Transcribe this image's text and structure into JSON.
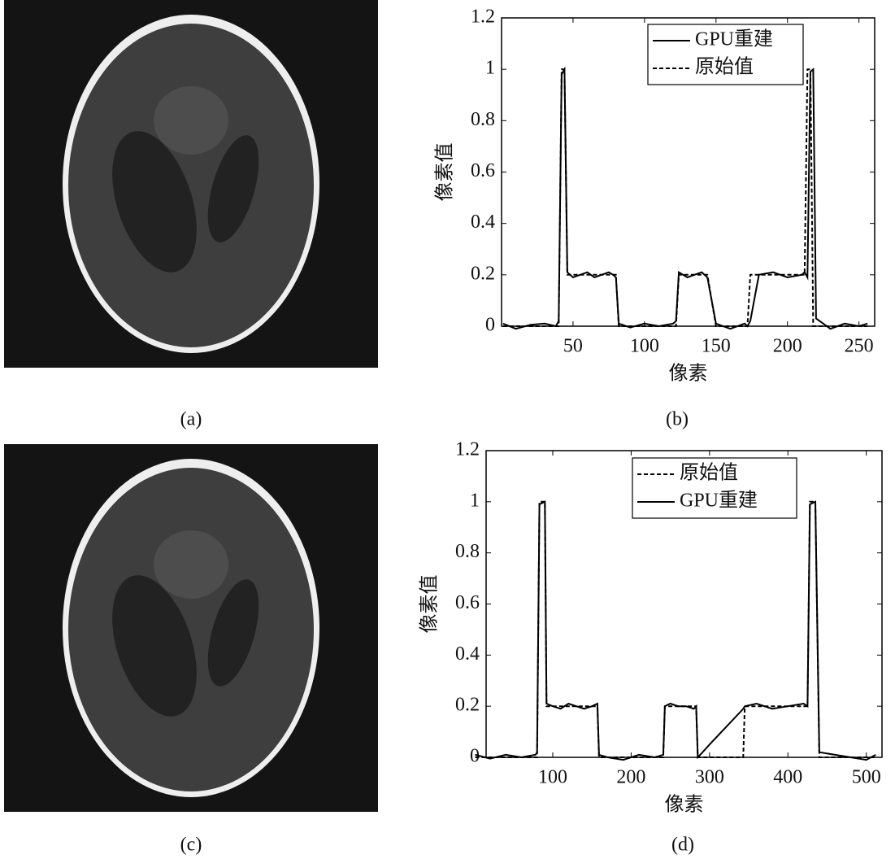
{
  "panels": [
    "(a)",
    "(b)",
    "(c)",
    "(d)"
  ],
  "chart_data": [
    {
      "type": "line",
      "xlabel": "像素",
      "ylabel": "像素值",
      "x": [
        1,
        10,
        20,
        30,
        38,
        40,
        42,
        44,
        46,
        50,
        55,
        60,
        65,
        70,
        75,
        78,
        80,
        82,
        90,
        100,
        110,
        120,
        122,
        124,
        130,
        135,
        140,
        142,
        144,
        150,
        160,
        170,
        172,
        174,
        180,
        190,
        200,
        210,
        212,
        214,
        216,
        218,
        220,
        225,
        230,
        240,
        250,
        256
      ],
      "series": [
        {
          "name": "GPU重建",
          "color": "#000000",
          "dash": "solid",
          "values": [
            0.01,
            -0.01,
            0.005,
            0.01,
            0,
            0.02,
            0.98,
            1.0,
            0.21,
            0.19,
            0.2,
            0.21,
            0.19,
            0.2,
            0.21,
            0.2,
            0.19,
            0.01,
            -0.005,
            0.01,
            0,
            0.01,
            0.02,
            0.21,
            0.19,
            0.2,
            0.21,
            0.2,
            0.19,
            0.01,
            -0.01,
            0.01,
            0,
            0.02,
            0.2,
            0.21,
            0.19,
            0.2,
            0.21,
            0.19,
            0.99,
            1.0,
            0.03,
            0.01,
            -0.01,
            0.01,
            0,
            0.01
          ]
        },
        {
          "name": "原始值",
          "color": "#000000",
          "dash": "dashed",
          "values": [
            0,
            0,
            0,
            0,
            0,
            0,
            1,
            1,
            0.2,
            0.2,
            0.2,
            0.2,
            0.2,
            0.2,
            0.2,
            0.2,
            0.2,
            0,
            0,
            0,
            0,
            0,
            0,
            0.2,
            0.2,
            0.2,
            0.2,
            0.2,
            0.2,
            0,
            0,
            0,
            0,
            0.2,
            0.2,
            0.2,
            0.2,
            0.2,
            0.2,
            1,
            1,
            0,
            0,
            0,
            0,
            0,
            0,
            0
          ]
        }
      ],
      "xlim": [
        0,
        261
      ],
      "ylim": [
        0,
        1.2
      ],
      "xticks": [
        50,
        100,
        150,
        200,
        250
      ],
      "yticks": [
        0,
        0.2,
        0.4,
        0.6,
        0.8,
        1,
        1.2
      ]
    },
    {
      "type": "line",
      "xlabel": "像素",
      "ylabel": "像素值",
      "x": [
        1,
        20,
        40,
        60,
        78,
        80,
        83,
        90,
        92,
        100,
        110,
        120,
        130,
        140,
        150,
        157,
        159,
        170,
        190,
        210,
        230,
        241,
        243,
        250,
        260,
        270,
        280,
        283,
        285,
        290,
        300,
        320,
        340,
        343,
        345,
        360,
        380,
        400,
        420,
        425,
        428,
        435,
        440,
        460,
        480,
        500,
        512
      ],
      "series": [
        {
          "name": "原始值",
          "color": "#000000",
          "dash": "dashed",
          "values": [
            0,
            0,
            0,
            0,
            0,
            0,
            1,
            1,
            0.2,
            0.2,
            0.2,
            0.2,
            0.2,
            0.2,
            0.2,
            0.2,
            0,
            0,
            0,
            0,
            0,
            0,
            0.2,
            0.2,
            0.2,
            0.2,
            0.2,
            0.2,
            0,
            0,
            0,
            0,
            0,
            0,
            0.2,
            0.2,
            0.2,
            0.2,
            0.2,
            0.2,
            1,
            1,
            0,
            0,
            0,
            0,
            0
          ]
        },
        {
          "name": "GPU重建",
          "color": "#000000",
          "dash": "solid",
          "values": [
            0.01,
            -0.005,
            0.01,
            0,
            0.01,
            0.02,
            0.99,
            1.0,
            0.21,
            0.2,
            0.19,
            0.21,
            0.2,
            0.19,
            0.2,
            0.21,
            0.01,
            0,
            -0.01,
            0.01,
            0,
            0.01,
            0.2,
            0.21,
            0.2,
            0.2,
            0.19,
            0.2,
            0,
            0.016,
            0.05,
            0.115,
            0.18,
            0.19,
            0.2,
            0.21,
            0.19,
            0.2,
            0.21,
            0.2,
            0.99,
            1.0,
            0.02,
            0.01,
            0,
            -0.01,
            0.01
          ]
        }
      ],
      "xlim": [
        15,
        520
      ],
      "ylim": [
        0,
        1.2
      ],
      "xticks": [
        100,
        200,
        300,
        400,
        500
      ],
      "yticks": [
        0,
        0.2,
        0.4,
        0.6,
        0.8,
        1,
        1.2
      ]
    }
  ]
}
